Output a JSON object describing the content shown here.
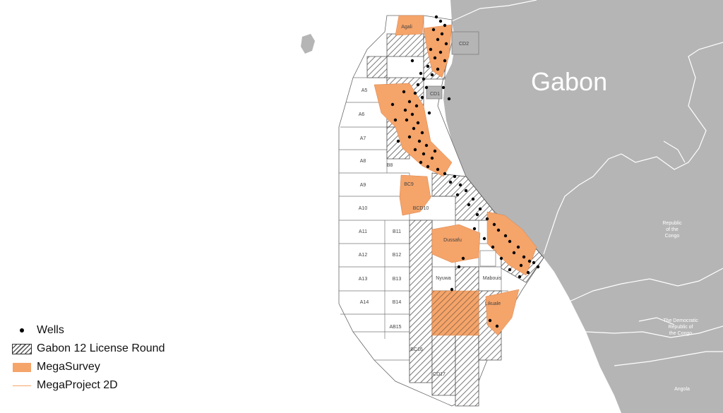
{
  "map": {
    "country_labels": {
      "gabon": "Gabon",
      "congo": "Republic of the Congo",
      "drc": "The Democratic Republic of the Congo",
      "angola": "Angola"
    },
    "colors": {
      "land": "#b5b5b5",
      "megasurvey": "#f5a46a",
      "block_outline": "#666666",
      "wells": "#000000"
    },
    "blocks": {
      "a5": "A5",
      "a6": "A6",
      "a7": "A7",
      "a8": "A8",
      "a9": "A9",
      "a10": "A10",
      "a11": "A11",
      "a12": "A12",
      "a13": "A13",
      "a14": "A14",
      "b11": "B11",
      "b12": "B12",
      "b13": "B13",
      "b14": "B14",
      "ab15": "AB15",
      "bc16": "BC16",
      "cd17": "CD17",
      "bc9": "BC9",
      "bcd10": "BCD10",
      "dussafu": "Dussafu",
      "nyuwa": "Nyuwa",
      "mabouis": "Mabouis",
      "likuale": "Likuale",
      "agali": "Agali",
      "cd1": "CD1",
      "cd2": "CD2",
      "b8": "B8"
    }
  },
  "legend": {
    "wells": "Wells",
    "license_round": "Gabon 12 License Round",
    "megasurvey": "MegaSurvey",
    "megaproject": "MegaProject 2D"
  }
}
